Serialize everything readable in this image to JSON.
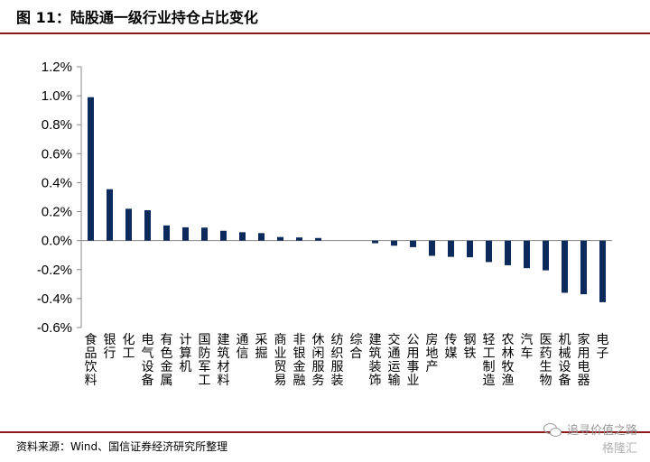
{
  "header": {
    "title": "图 11：陆股通一级行业持仓占比变化"
  },
  "footer": {
    "source": "资料来源：Wind、国信证券经济研究所整理"
  },
  "watermark": {
    "line1": "追寻价值之路",
    "line2": "格隆汇"
  },
  "colors": {
    "bar": "#0D2A5C",
    "rule": "#8B1A1A"
  },
  "icons": {
    "watermark": "wechat-icon"
  },
  "chart_data": {
    "type": "bar",
    "title": "",
    "xlabel": "",
    "ylabel": "",
    "ylim": [
      -0.6,
      1.2
    ],
    "yticks": [
      1.2,
      1.0,
      0.8,
      0.6,
      0.4,
      0.2,
      0.0,
      -0.2,
      -0.4,
      -0.6
    ],
    "ytick_labels": [
      "1.2%",
      "1.0%",
      "0.8%",
      "0.6%",
      "0.4%",
      "0.2%",
      "0.0%",
      "-0.2%",
      "-0.4%",
      "-0.6%"
    ],
    "grid": false,
    "categories": [
      "食品饮料",
      "银行",
      "化工",
      "电气设备",
      "有色金属",
      "计算机",
      "国防军工",
      "建筑材料",
      "通信",
      "采掘",
      "商业贸易",
      "非银金融",
      "休闲服务",
      "纺织服装",
      "综合",
      "建筑装饰",
      "交通运输",
      "公用事业",
      "房地产",
      "传媒",
      "钢铁",
      "轻工制造",
      "农林牧渔",
      "汽车",
      "医药生物",
      "机械设备",
      "家用电器",
      "电子"
    ],
    "values": [
      0.99,
      0.355,
      0.22,
      0.21,
      0.105,
      0.092,
      0.09,
      0.068,
      0.058,
      0.052,
      0.025,
      0.022,
      0.018,
      0.0,
      0.0,
      -0.018,
      -0.035,
      -0.045,
      -0.105,
      -0.112,
      -0.115,
      -0.148,
      -0.17,
      -0.19,
      -0.205,
      -0.36,
      -0.37,
      -0.425
    ]
  }
}
